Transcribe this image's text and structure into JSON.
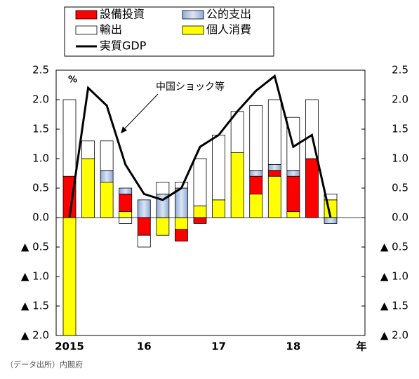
{
  "chart_data": {
    "type": "bar",
    "stacked": true,
    "unit_label": "%",
    "x_label": "年",
    "annotation": "中国ショック等",
    "source": "（データ出所）内閣府",
    "categories": [
      "2015",
      null,
      null,
      null,
      "16",
      null,
      null,
      null,
      "17",
      null,
      null,
      null,
      "18",
      null,
      null
    ],
    "series": [
      {
        "name": "設備投資",
        "color": "#ff0000",
        "values": [
          0.7,
          0,
          0,
          0.3,
          -0.3,
          0,
          -0.2,
          -0.1,
          0,
          0,
          0.3,
          0.1,
          0.6,
          1.0,
          0
        ]
      },
      {
        "name": "公的支出",
        "color": "#b8cce4",
        "values": [
          0,
          0,
          0.2,
          0.1,
          0.3,
          0.4,
          0.5,
          0,
          0,
          0,
          0.1,
          0.1,
          0.1,
          0,
          -0.1
        ]
      },
      {
        "name": "輸出",
        "color": "#ffffff",
        "values": [
          1.3,
          0.3,
          0.5,
          -0.1,
          -0.2,
          0.2,
          0.1,
          0.8,
          1.1,
          0.7,
          1.1,
          1.1,
          0.9,
          1.0,
          0.1
        ]
      },
      {
        "name": "個人消費",
        "color": "#ffff00",
        "values": [
          -2.0,
          1.0,
          0.6,
          0.1,
          0,
          -0.3,
          -0.2,
          0.2,
          0.3,
          1.1,
          0.4,
          0.7,
          0.1,
          0,
          0.3
        ]
      },
      {
        "name": "実質GDP",
        "type": "line",
        "color": "#000000",
        "values": [
          0.0,
          2.2,
          1.9,
          0.9,
          0.4,
          0.3,
          0.5,
          1.2,
          1.4,
          1.8,
          2.15,
          2.4,
          1.2,
          1.4,
          0.0
        ]
      }
    ],
    "ylim": [
      -2.0,
      2.5
    ],
    "yticks": [
      {
        "value": 2.5,
        "label": "2.5"
      },
      {
        "value": 2.0,
        "label": "2.0"
      },
      1.5,
      {
        "value": 1.0,
        "label": "1.0"
      },
      0.5,
      {
        "value": 0,
        "label": "0.0"
      },
      {
        "value": -0.5,
        "label": "▲ 0.5"
      },
      {
        "value": -1.0,
        "label": "▲ 1.0"
      },
      {
        "value": -1.5,
        "label": "▲ 1.5"
      },
      {
        "value": -2.0,
        "label": "▲ 2.0"
      }
    ],
    "y2lim": [
      -2.0,
      2.5
    ],
    "y2ticks": [
      {
        "value": 2.5,
        "label": "2.5"
      },
      {
        "value": 2.0,
        "label": "2.0"
      },
      1.5,
      {
        "value": 1.0,
        "label": "1.0"
      },
      0.5,
      {
        "value": 0,
        "label": "0.0"
      },
      {
        "value": -0.5,
        "label": "▲ 0.5"
      },
      {
        "value": -1.0,
        "label": "▲ 1.0"
      },
      {
        "value": -1.5,
        "label": "▲ 1.5"
      },
      {
        "value": -2.0,
        "label": "▲ 2.0"
      }
    ]
  }
}
